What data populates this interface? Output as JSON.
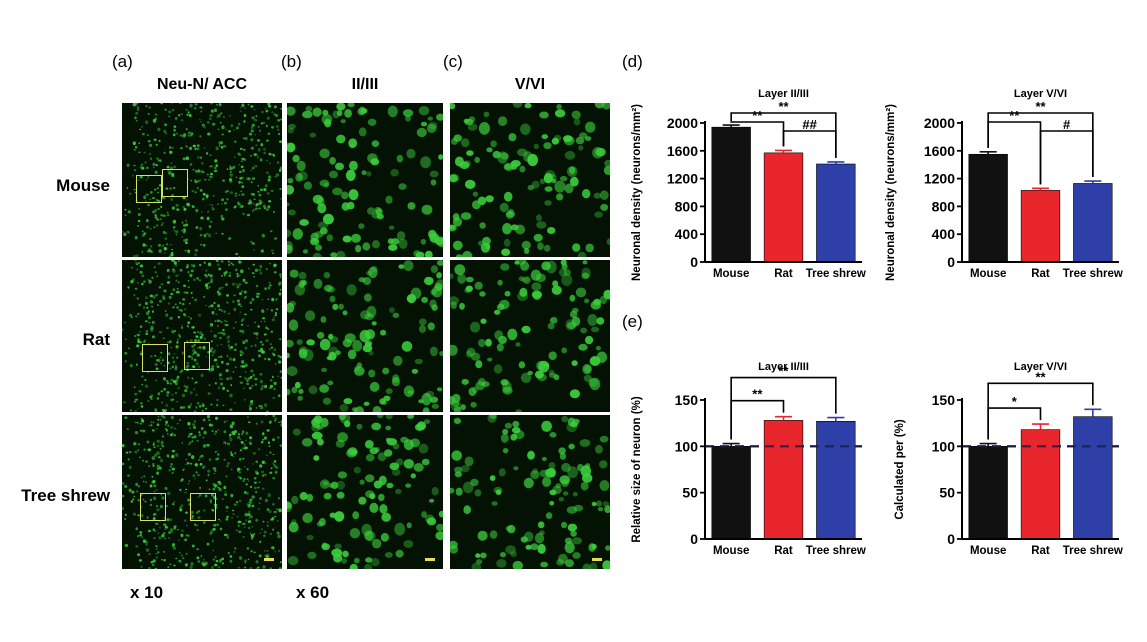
{
  "panels": {
    "a": "(a)",
    "b": "(b)",
    "c": "(c)",
    "d": "(d)",
    "e": "(e)"
  },
  "column_titles": {
    "a": "Neu-N/ ACC",
    "b": "II/III",
    "c": "V/VI"
  },
  "row_labels": [
    "Mouse",
    "Rat",
    "Tree shrew"
  ],
  "magnifications": {
    "low": "x 10",
    "high": "x 60"
  },
  "colors": {
    "mouse": "#111111",
    "rat": "#e8262b",
    "tree_shrew": "#2f3fa8",
    "stain": "#3ccf3c"
  },
  "chart_data": [
    {
      "id": "d-layer23",
      "type": "bar",
      "title": "Layer II/III",
      "ylabel": "Neuronal density (neurons/mm²)",
      "categories": [
        "Mouse",
        "Rat",
        "Tree shrew"
      ],
      "values": [
        1940,
        1570,
        1410
      ],
      "errors": [
        30,
        35,
        30
      ],
      "ylim": [
        0,
        2000
      ],
      "yticks": [
        0,
        400,
        800,
        1200,
        1600,
        2000
      ],
      "annotations": [
        {
          "from": 0,
          "to": 1,
          "label": "**"
        },
        {
          "from": 0,
          "to": 2,
          "label": "**"
        },
        {
          "from": 1,
          "to": 2,
          "label": "##"
        }
      ]
    },
    {
      "id": "d-layer56",
      "type": "bar",
      "title": "Layer V/VI",
      "ylabel": "Neuronal density (neurons/mm²)",
      "categories": [
        "Mouse",
        "Rat",
        "Tree shrew"
      ],
      "values": [
        1550,
        1030,
        1130
      ],
      "errors": [
        35,
        30,
        35
      ],
      "ylim": [
        0,
        2000
      ],
      "yticks": [
        0,
        400,
        800,
        1200,
        1600,
        2000
      ],
      "annotations": [
        {
          "from": 0,
          "to": 1,
          "label": "**"
        },
        {
          "from": 0,
          "to": 2,
          "label": "**"
        },
        {
          "from": 1,
          "to": 2,
          "label": "#"
        }
      ]
    },
    {
      "id": "e-layer23",
      "type": "bar",
      "title": "Layer II/III",
      "ylabel": "Relative size of neuron (%)",
      "categories": [
        "Mouse",
        "Rat",
        "Tree shrew"
      ],
      "values": [
        100,
        128,
        127
      ],
      "errors": [
        3,
        4,
        4
      ],
      "ylim": [
        0,
        150
      ],
      "yticks": [
        0,
        50,
        100,
        150
      ],
      "reference_line": 100,
      "annotations": [
        {
          "from": 0,
          "to": 1,
          "label": "**"
        },
        {
          "from": 0,
          "to": 2,
          "label": "**"
        }
      ]
    },
    {
      "id": "e-layer56",
      "type": "bar",
      "title": "Layer V/VI",
      "ylabel": "Calculated per (%)",
      "categories": [
        "Mouse",
        "Rat",
        "Tree shrew"
      ],
      "values": [
        100,
        118,
        132
      ],
      "errors": [
        3,
        6,
        8
      ],
      "ylim": [
        0,
        150
      ],
      "yticks": [
        0,
        50,
        100,
        150
      ],
      "reference_line": 100,
      "annotations": [
        {
          "from": 0,
          "to": 1,
          "label": "*"
        },
        {
          "from": 0,
          "to": 2,
          "label": "**"
        }
      ]
    }
  ]
}
